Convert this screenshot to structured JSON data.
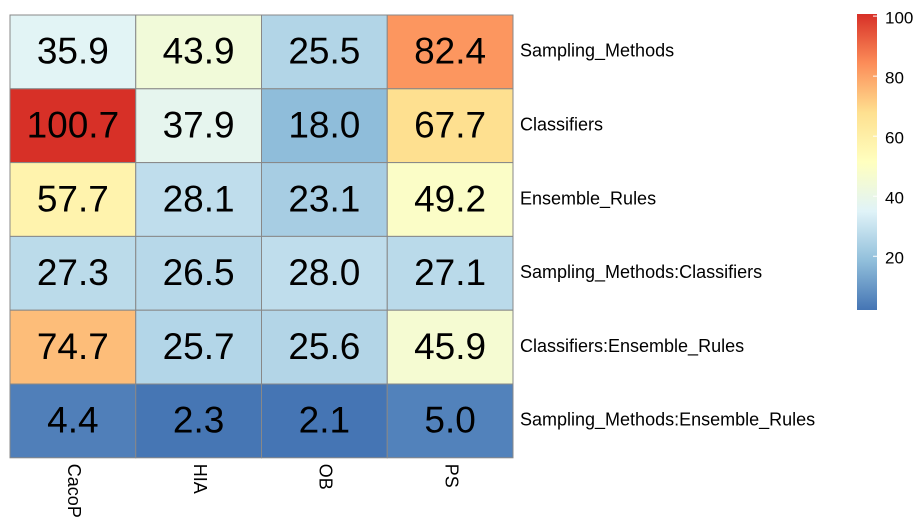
{
  "chart_data": {
    "type": "heatmap",
    "columns": [
      "CacoP",
      "HIA",
      "OB",
      "PS"
    ],
    "rows": [
      "Sampling_Methods",
      "Classifiers",
      "Ensemble_Rules",
      "Sampling_Methods:Classifiers",
      "Classifiers:Ensemble_Rules",
      "Sampling_Methods:Ensemble_Rules"
    ],
    "values": [
      [
        35.9,
        43.9,
        25.5,
        82.4
      ],
      [
        100.7,
        37.9,
        18,
        67.7
      ],
      [
        57.7,
        28.1,
        23.1,
        49.2
      ],
      [
        27.3,
        26.5,
        28,
        27.1
      ],
      [
        74.7,
        25.7,
        25.6,
        45.9
      ],
      [
        4.4,
        2.3,
        2.1,
        5
      ]
    ],
    "value_labels": [
      [
        "35.9",
        "43.9",
        "25.5",
        "82.4"
      ],
      [
        "100.7",
        "37.9",
        "18.0",
        "67.7"
      ],
      [
        "57.7",
        "28.1",
        "23.1",
        "49.2"
      ],
      [
        "27.3",
        "26.5",
        "28.0",
        "27.1"
      ],
      [
        "74.7",
        "25.7",
        "25.6",
        "45.9"
      ],
      [
        "4.4",
        "2.3",
        "2.1",
        "5.0"
      ]
    ],
    "colormap": [
      "#4575B4",
      "#91BFDB",
      "#E0F3F8",
      "#FFFFBF",
      "#FEE090",
      "#FC8D59",
      "#D73027"
    ],
    "zlim": [
      2.1,
      100.7
    ],
    "zticks": [
      20,
      40,
      60,
      80,
      100
    ]
  }
}
